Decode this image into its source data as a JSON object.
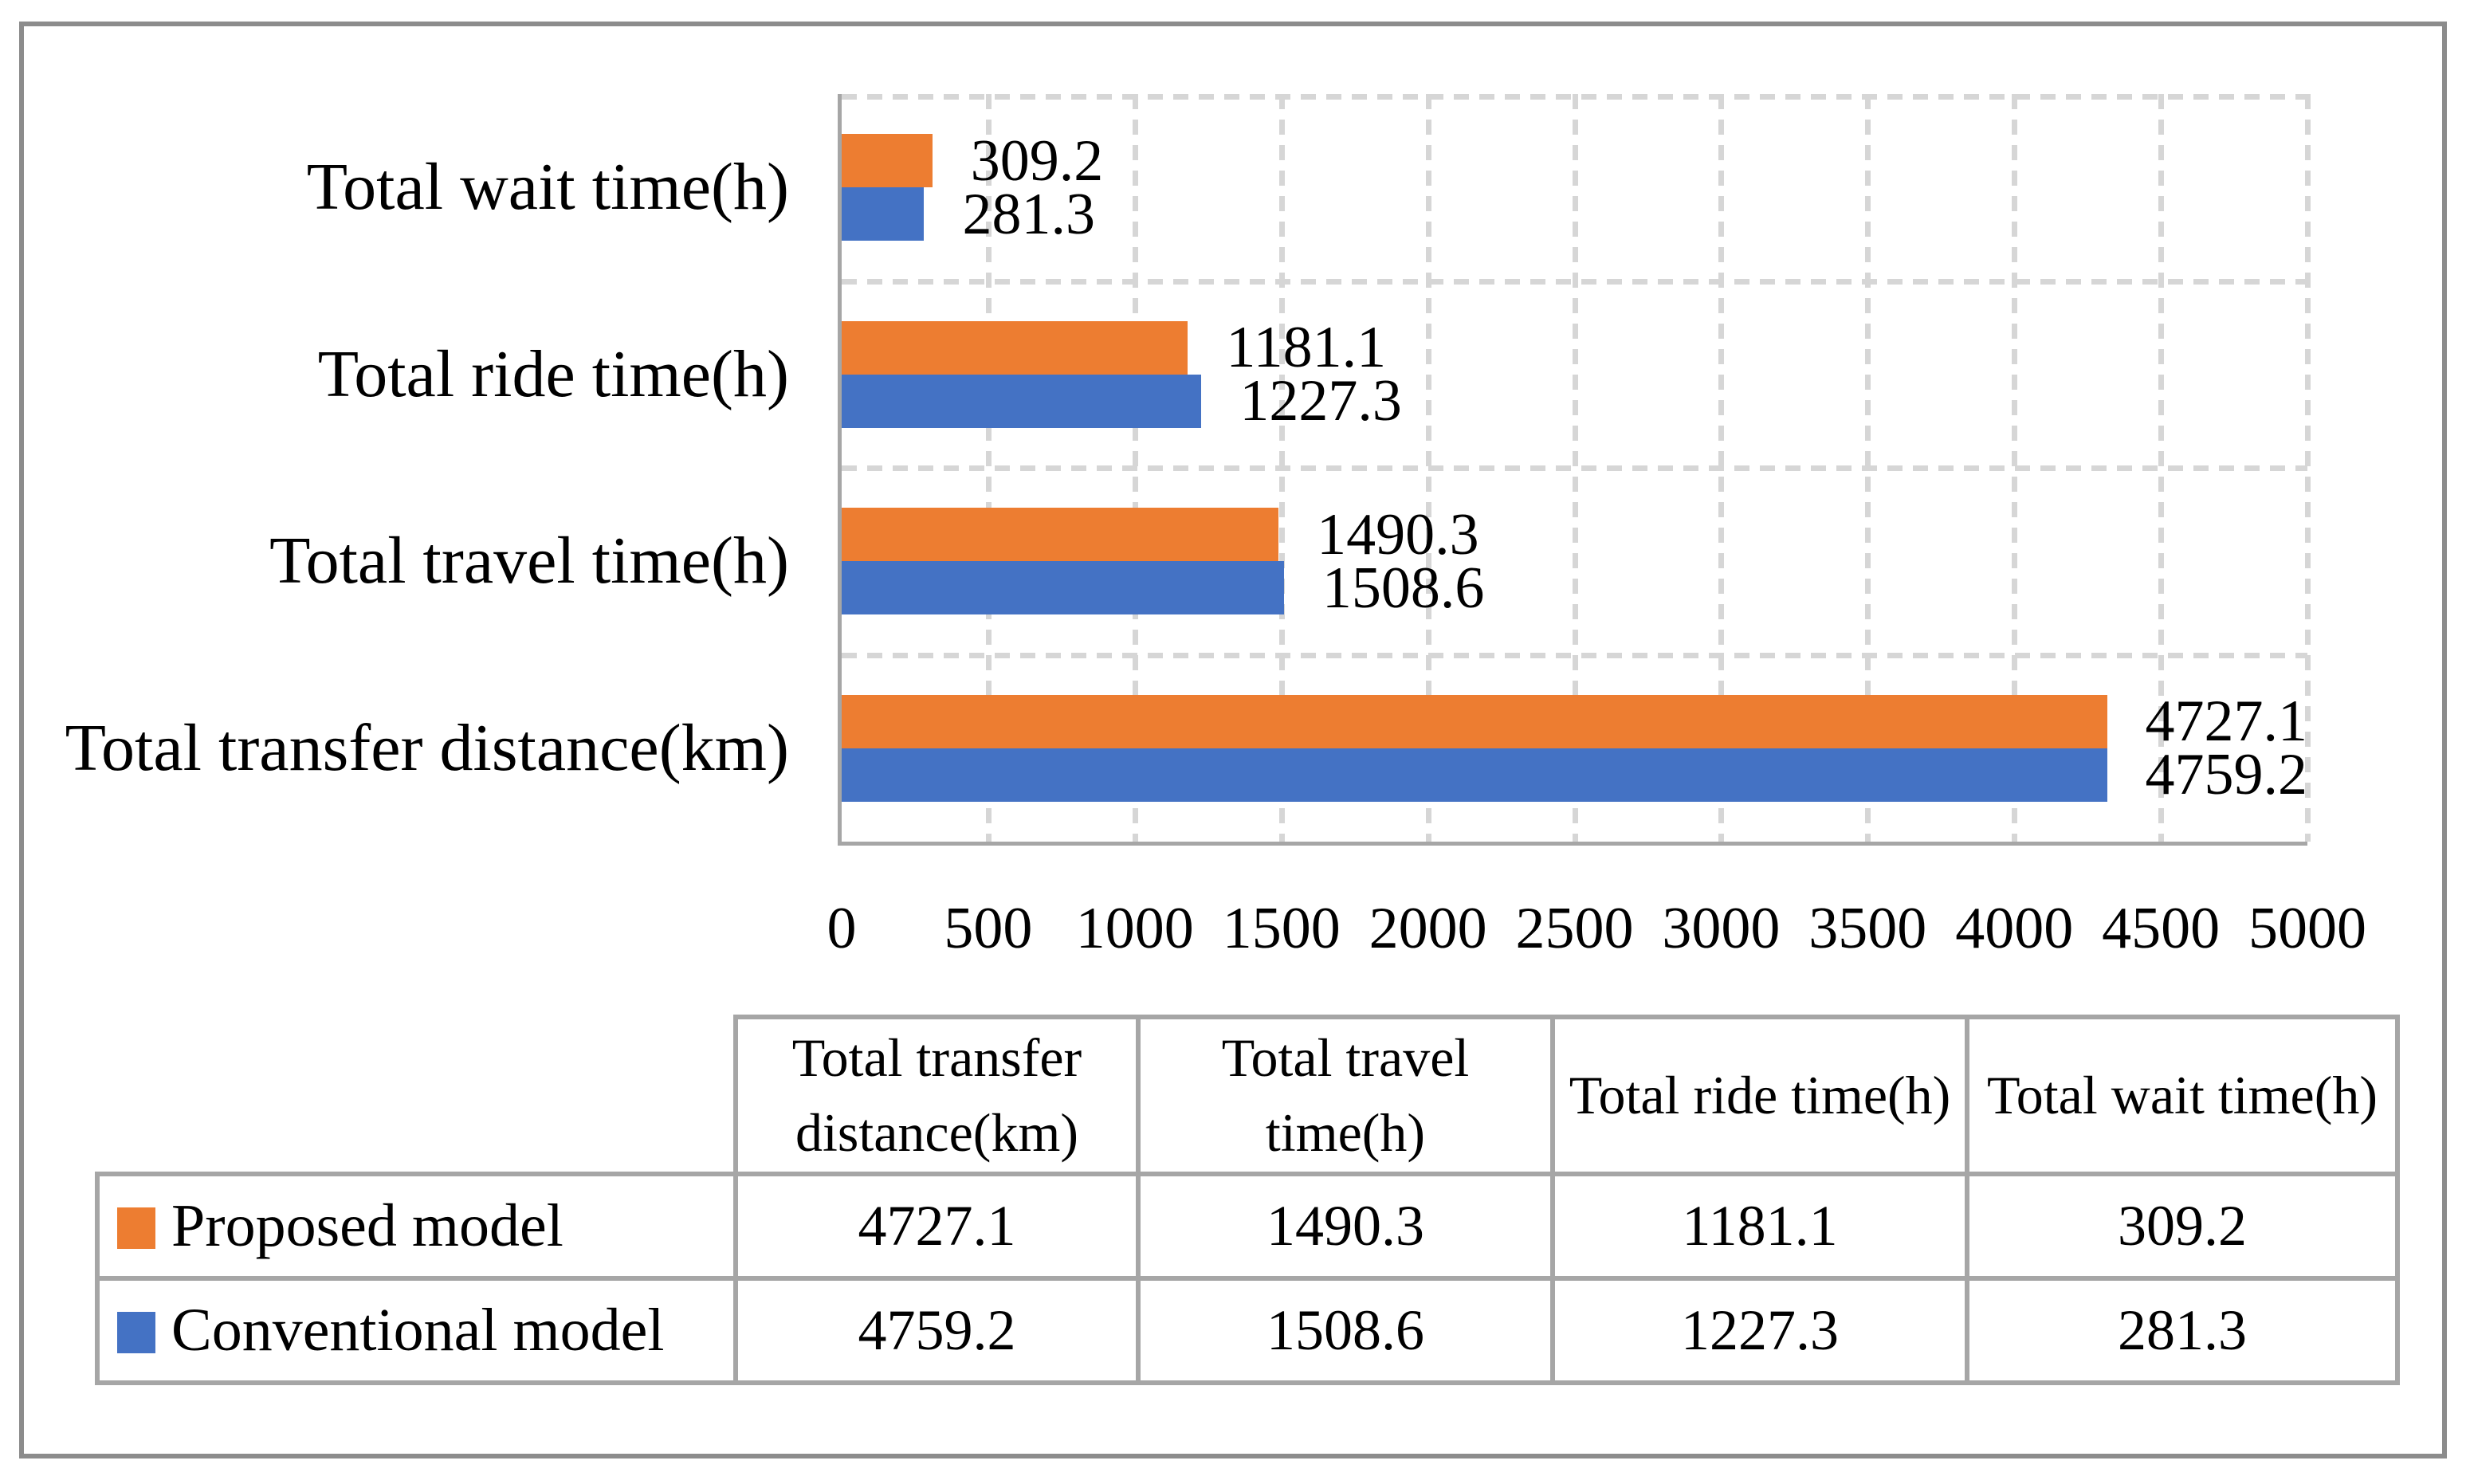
{
  "figure": {
    "background": "#ffffff",
    "border_color": "#8C8C8C"
  },
  "chart_data": {
    "type": "bar",
    "orientation": "horizontal",
    "title": "",
    "xlabel": "",
    "ylabel": "",
    "categories": [
      "Total wait time(h)",
      "Total ride time(h)",
      "Total travel time(h)",
      "Total transfer distance(km)"
    ],
    "series": [
      {
        "name": "Proposed model",
        "color": "#ED7D31",
        "values": [
          309.2,
          1181.1,
          1490.3,
          4727.1
        ]
      },
      {
        "name": "Conventional model",
        "color": "#4472C4",
        "values": [
          281.3,
          1227.3,
          1508.6,
          4759.2
        ]
      }
    ],
    "xlim": [
      0,
      5000
    ],
    "x_ticks": [
      0,
      500,
      1000,
      1500,
      2000,
      2500,
      3000,
      3500,
      4000,
      4500,
      5000
    ],
    "grid": "dashed",
    "gridline_color": "#D6D6D6",
    "axis_color": "#A6A6A6",
    "data_labels": true,
    "legend_position": "table-below"
  },
  "table": {
    "col_headers": [
      "Total transfer distance(km)",
      "Total travel time(h)",
      "Total ride time(h)",
      "Total wait time(h)"
    ],
    "rows": [
      {
        "label": "Proposed model",
        "swatch_color": "#ED7D31",
        "values": [
          "4727.1",
          "1490.3",
          "1181.1",
          "309.2"
        ]
      },
      {
        "label": "Conventional model",
        "swatch_color": "#4472C4",
        "values": [
          "4759.2",
          "1508.6",
          "1227.3",
          "281.3"
        ]
      }
    ],
    "border_color": "#A6A6A6"
  }
}
